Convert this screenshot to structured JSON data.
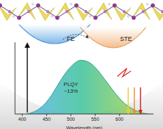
{
  "chart_data": {
    "type": "area",
    "x_label": "Wavelength (nm)",
    "x": [
      410,
      420,
      430,
      440,
      450,
      460,
      470,
      480,
      490,
      500,
      510,
      520,
      530,
      540,
      550,
      560,
      570,
      580,
      590,
      600,
      610,
      620,
      630,
      640,
      650,
      660
    ],
    "values": [
      0.0,
      0.02,
      0.05,
      0.1,
      0.17,
      0.26,
      0.37,
      0.48,
      0.58,
      0.66,
      0.72,
      0.75,
      0.74,
      0.71,
      0.65,
      0.57,
      0.48,
      0.39,
      0.3,
      0.22,
      0.15,
      0.1,
      0.06,
      0.03,
      0.01,
      0.0
    ],
    "color": "#2a9d8f",
    "xlim": [
      385,
      670
    ],
    "xticks": [
      400,
      450,
      500,
      550,
      600
    ],
    "ylim": [
      0,
      1
    ],
    "tick_labels": "x",
    "grid": false,
    "annotations": [
      "FE",
      "STE",
      "PLQY",
      "~13%"
    ]
  }
}
